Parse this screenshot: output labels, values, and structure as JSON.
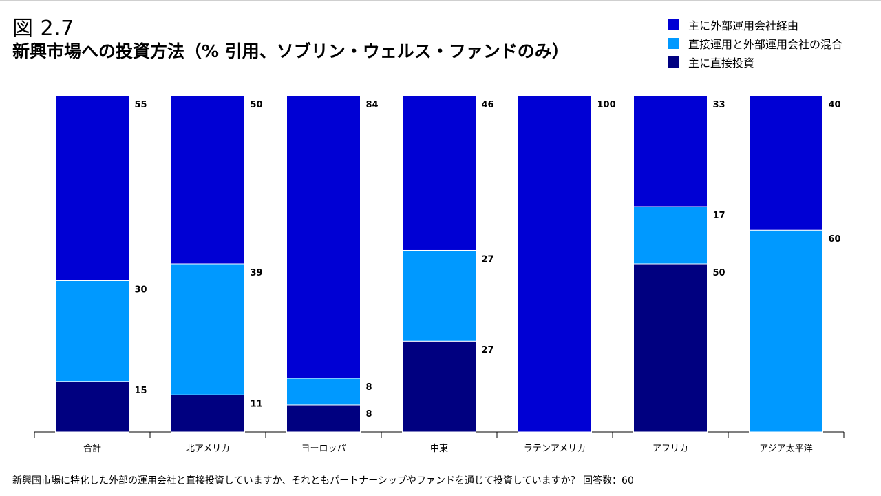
{
  "figure_label": "図 2.7",
  "title": "新興市場への投資方法（% 引用、ソブリン・ウェルス・ファンドのみ）",
  "footnote": "新興国市場に特化した外部の運用会社と直接投資していますか、それともパートナーシップやファンドを通じて投資していますか？ 回答数：60",
  "chart_data": {
    "type": "bar",
    "stacked": true,
    "categories": [
      "合計",
      "北アメリカ",
      "ヨーロッパ",
      "中東",
      "ラテンアメリカ",
      "アフリカ",
      "アジア太平洋"
    ],
    "series": [
      {
        "name": "主に直接投資",
        "color": "#000080",
        "values": [
          15,
          11,
          8,
          27,
          0,
          50,
          0
        ]
      },
      {
        "name": "直接運用と外部運用会社の混合",
        "color": "#0099ff",
        "values": [
          30,
          39,
          8,
          27,
          0,
          17,
          60
        ]
      },
      {
        "name": "主に外部運用会社経由",
        "color": "#0000d4",
        "values": [
          55,
          50,
          84,
          46,
          100,
          33,
          40
        ]
      }
    ],
    "legend_order": [
      "主に外部運用会社経由",
      "直接運用と外部運用会社の混合",
      "主に直接投資"
    ],
    "ylim": [
      0,
      100
    ],
    "grid": false,
    "legend_position": "top-right"
  }
}
